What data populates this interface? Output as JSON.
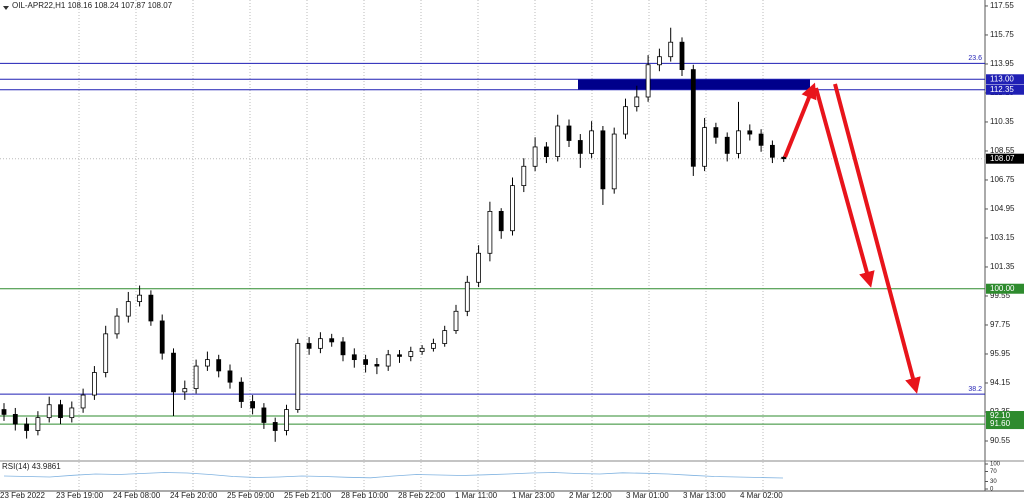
{
  "chart_data": {
    "type": "candlestick",
    "title": "OIL-APR22,H1 108.16 108.24 107.87 108.07",
    "open": [
      92.5,
      92.2,
      91.6,
      91.2,
      92.0,
      92.8,
      92.0,
      92.6,
      93.4,
      94.8,
      97.2,
      98.3,
      99.2,
      99.6,
      98.0,
      96.0,
      93.6,
      93.8,
      95.2,
      95.6,
      94.9,
      94.2,
      93.0,
      92.6,
      91.7,
      91.2,
      92.5,
      96.6,
      96.3,
      96.9,
      96.7,
      95.9,
      95.6,
      95.3,
      95.2,
      95.9,
      95.8,
      96.1,
      96.3,
      96.6,
      97.4,
      98.6,
      100.4,
      102.2,
      104.8,
      103.6,
      106.4,
      107.6,
      108.8,
      108.2,
      110.1,
      109.2,
      108.4,
      109.8,
      106.2,
      109.6,
      111.3,
      111.9,
      113.9,
      114.4,
      115.3,
      113.6,
      107.6,
      110.0,
      109.4,
      108.4,
      109.8,
      109.6,
      108.9,
      108.16
    ],
    "high": [
      92.9,
      92.6,
      92.0,
      92.4,
      93.3,
      93.1,
      93.0,
      93.8,
      95.2,
      97.7,
      98.8,
      99.8,
      100.2,
      99.9,
      98.4,
      96.3,
      94.3,
      95.6,
      96.1,
      95.9,
      95.3,
      94.5,
      93.4,
      92.9,
      92.0,
      92.8,
      96.9,
      97.0,
      97.3,
      97.2,
      97.0,
      96.3,
      95.9,
      95.7,
      96.2,
      96.2,
      96.4,
      96.5,
      96.9,
      97.7,
      99.0,
      100.8,
      102.7,
      105.4,
      105.0,
      106.9,
      108.1,
      109.4,
      109.1,
      110.8,
      110.5,
      109.6,
      110.4,
      110.1,
      110.0,
      111.8,
      112.6,
      114.5,
      114.9,
      116.2,
      115.6,
      113.9,
      110.6,
      110.3,
      109.7,
      111.6,
      110.2,
      109.9,
      109.2,
      108.24
    ],
    "low": [
      91.8,
      91.2,
      90.7,
      90.9,
      91.7,
      91.6,
      91.7,
      92.3,
      93.1,
      94.5,
      96.9,
      97.9,
      98.9,
      97.7,
      95.6,
      92.1,
      93.1,
      93.5,
      94.9,
      94.5,
      93.8,
      92.6,
      92.2,
      91.3,
      90.5,
      90.9,
      92.3,
      95.9,
      96.0,
      96.4,
      95.5,
      95.1,
      94.8,
      94.7,
      94.9,
      95.4,
      95.5,
      95.9,
      96.1,
      96.4,
      97.2,
      98.3,
      100.1,
      101.7,
      103.1,
      103.3,
      106.0,
      107.3,
      107.8,
      107.9,
      108.8,
      107.5,
      108.1,
      105.2,
      105.9,
      109.3,
      111.0,
      111.6,
      113.5,
      114.1,
      113.2,
      107.0,
      107.3,
      109.0,
      107.9,
      108.1,
      109.2,
      108.5,
      107.8,
      107.87
    ],
    "close": [
      92.2,
      91.6,
      91.2,
      92.0,
      92.8,
      92.0,
      92.6,
      93.4,
      94.8,
      97.2,
      98.3,
      99.2,
      99.6,
      98.0,
      96.0,
      93.6,
      93.8,
      95.2,
      95.6,
      94.9,
      94.2,
      93.0,
      92.6,
      91.7,
      91.2,
      92.5,
      96.6,
      96.3,
      96.9,
      96.7,
      95.9,
      95.6,
      95.3,
      95.2,
      95.9,
      95.8,
      96.1,
      96.3,
      96.6,
      97.4,
      98.6,
      100.4,
      102.2,
      104.8,
      103.6,
      106.4,
      107.6,
      108.8,
      108.2,
      110.1,
      109.2,
      108.4,
      109.8,
      106.2,
      109.6,
      111.3,
      111.9,
      113.9,
      114.4,
      115.3,
      113.6,
      107.6,
      110.0,
      109.4,
      108.4,
      109.8,
      109.6,
      108.9,
      108.16,
      108.07
    ],
    "ylim": [
      89.37,
      117.92
    ],
    "yticks": [
      {
        "value": 117.55,
        "label": "117.55"
      },
      {
        "value": 115.75,
        "label": "115.75"
      },
      {
        "value": 113.95,
        "label": "113.95"
      },
      {
        "value": 112.15,
        "label": "112.15"
      },
      {
        "value": 110.35,
        "label": "110.35"
      },
      {
        "value": 108.55,
        "label": "108.55"
      },
      {
        "value": 106.75,
        "label": "106.75"
      },
      {
        "value": 104.95,
        "label": "104.95"
      },
      {
        "value": 103.15,
        "label": "103.15"
      },
      {
        "value": 101.35,
        "label": "101.35"
      },
      {
        "value": 99.55,
        "label": "99.55"
      },
      {
        "value": 97.75,
        "label": "97.75"
      },
      {
        "value": 95.95,
        "label": "95.95"
      },
      {
        "value": 94.15,
        "label": "94.15"
      },
      {
        "value": 92.35,
        "label": "92.35"
      },
      {
        "value": 90.55,
        "label": "90.55"
      }
    ],
    "hlines": [
      {
        "value": 113.99,
        "label": "23.6",
        "color": "#1f1fb4",
        "boxed": false
      },
      {
        "value": 113.0,
        "label": "113.00",
        "color": "#1f1fb4",
        "boxed": true
      },
      {
        "value": 112.35,
        "label": "112.35",
        "color": "#1f1fb4",
        "boxed": true
      },
      {
        "value": 100.0,
        "label": "100.00",
        "color": "#2e8b2e",
        "boxed": true
      },
      {
        "value": 93.46,
        "label": "38.2",
        "color": "#1f1fb4",
        "boxed": false
      },
      {
        "value": 92.1,
        "label": "92.10",
        "color": "#2e8b2e",
        "boxed": true
      },
      {
        "value": 91.6,
        "label": "91.60",
        "color": "#2e8b2e",
        "boxed": true
      }
    ],
    "last": {
      "value": 108.07,
      "label": "108.07"
    },
    "time_labels": [
      "23 Feb 2022",
      "23 Feb 19:00",
      "24 Feb 08:00",
      "24 Feb 20:00",
      "25 Feb 09:00",
      "25 Feb 21:00",
      "28 Feb 10:00",
      "28 Feb 22:00",
      "1 Mar 11:00",
      "1 Mar 23:00",
      "2 Mar 12:00",
      "3 Mar 01:00",
      "3 Mar 13:00",
      "4 Mar 02:00"
    ],
    "rsi": {
      "label": "RSI(14) 43.9861",
      "values": [
        52,
        50,
        48,
        55,
        60,
        58,
        62,
        66,
        64,
        58,
        50,
        46,
        48,
        52,
        50,
        47,
        45,
        52,
        58,
        56,
        54,
        57,
        60,
        64,
        66,
        62,
        60,
        65,
        63,
        60,
        55,
        50,
        48,
        46,
        44
      ],
      "ylim": [
        0,
        100
      ],
      "yticks": [
        100,
        70,
        30,
        0
      ],
      "color": "#7fb2e0"
    }
  }
}
